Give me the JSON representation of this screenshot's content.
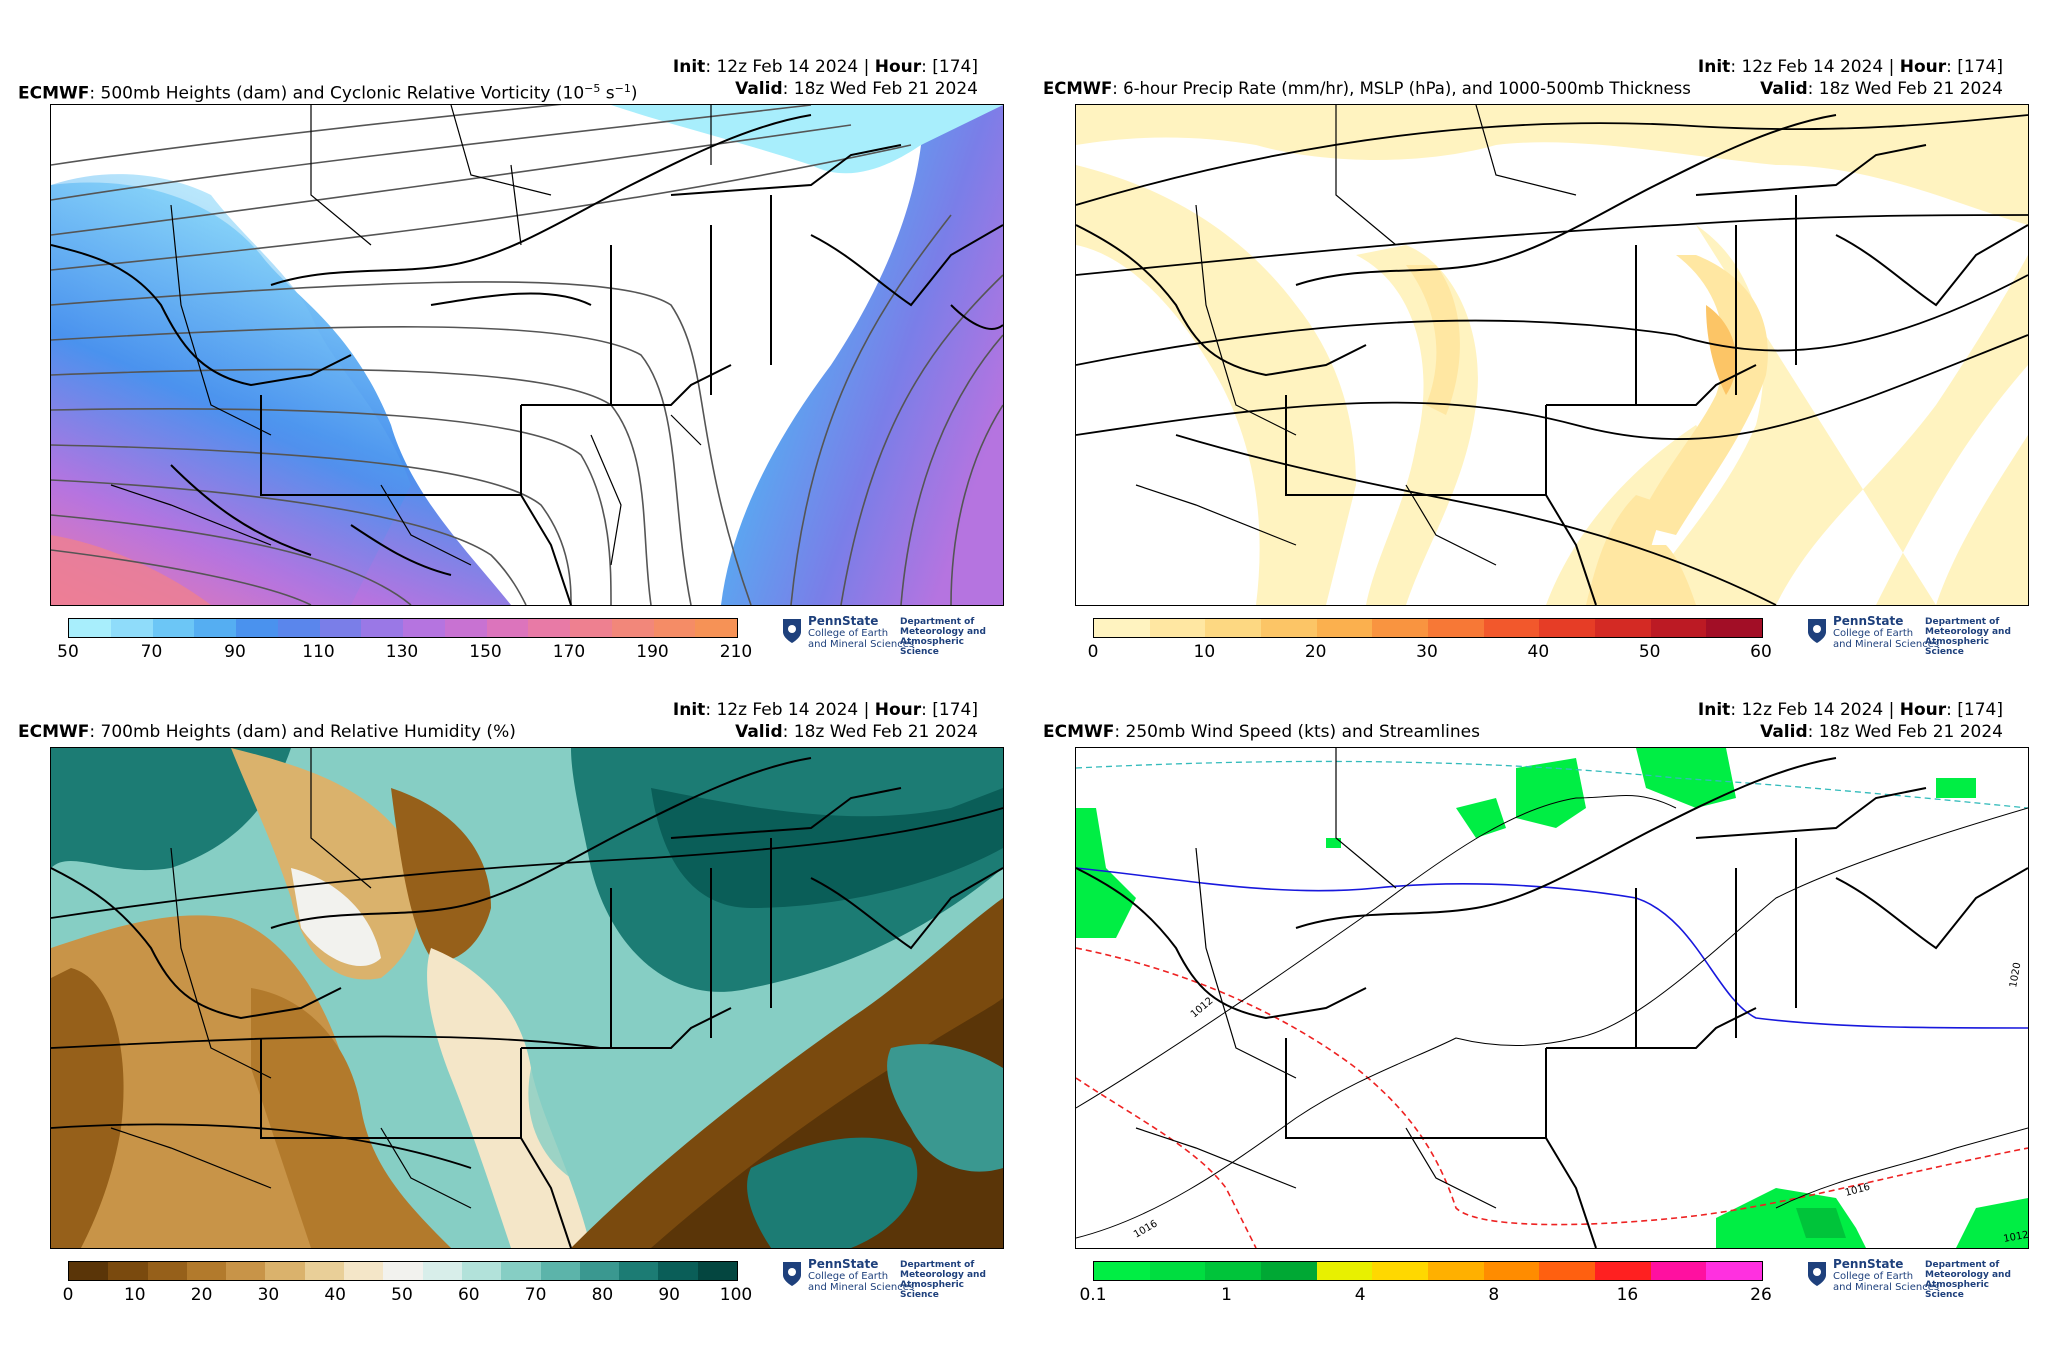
{
  "logo": {
    "name": "PennState",
    "college_line1": "College of Earth",
    "college_line2": "and Mineral Sciences",
    "dept_line1": "Department of",
    "dept_line2": "Meteorology and",
    "dept_line3": "Atmospheric Science"
  },
  "panels": [
    {
      "model": "ECMWF",
      "title": ": 500mb Heights (dam) and Cyclonic Relative Vorticity (10",
      "title_sup": "−5",
      "title_tail": " s",
      "title_sup2": "−1",
      "title_end": ")",
      "init_label": "Init",
      "init_value": ": 12z Feb 14 2024 | ",
      "hour_label": "Hour",
      "hour_value": ": [174]",
      "valid_label": "Valid",
      "valid_value": ": 18z Wed Feb 21 2024",
      "colorbar": {
        "ticks": [
          "50",
          "70",
          "90",
          "110",
          "130",
          "150",
          "170",
          "190",
          "210"
        ],
        "colors": [
          "#a8eefc",
          "#8fdcfa",
          "#6cc6f6",
          "#55aef2",
          "#4a92ee",
          "#5a86ec",
          "#7a7ee8",
          "#9a78e6",
          "#b574e0",
          "#c872d2",
          "#dc74bc",
          "#e87aa6",
          "#ee8090",
          "#f2877a",
          "#f58c66",
          "#f69256"
        ]
      }
    },
    {
      "model": "ECMWF",
      "title": ": 6-hour Precip Rate (mm/hr), MSLP (hPa), and 1000-500mb Thickness",
      "init_label": "Init",
      "init_value": ": 12z Feb 14 2024 | ",
      "hour_label": "Hour",
      "hour_value": ": [174]",
      "valid_label": "Valid",
      "valid_value": ": 18z Wed Feb 21 2024",
      "colorbar": {
        "ticks": [
          "0",
          "10",
          "20",
          "30",
          "40",
          "50",
          "60"
        ],
        "colors": [
          "#fff3c0",
          "#ffe7a2",
          "#fdd882",
          "#fcc566",
          "#fbb04e",
          "#f99440",
          "#f77836",
          "#f2582c",
          "#e63d26",
          "#d42a24",
          "#bc1a24",
          "#a20e26"
        ]
      }
    },
    {
      "model": "ECMWF",
      "title": ": 700mb Heights (dam) and Relative Humidity (%)",
      "init_label": "Init",
      "init_value": ": 12z Feb 14 2024 | ",
      "hour_label": "Hour",
      "hour_value": ": [174]",
      "valid_label": "Valid",
      "valid_value": ": 18z Wed Feb 21 2024",
      "colorbar": {
        "ticks": [
          "0",
          "10",
          "20",
          "30",
          "40",
          "50",
          "60",
          "70",
          "80",
          "90",
          "100"
        ],
        "colors": [
          "#5a3508",
          "#7a4a0e",
          "#96601a",
          "#b27a2c",
          "#c89448",
          "#dab26c",
          "#e9cf98",
          "#f4e6c8",
          "#f2f2ee",
          "#d8eeea",
          "#b2e2da",
          "#86cec4",
          "#5cb4aa",
          "#3a9890",
          "#1c7c74",
          "#0a5e58",
          "#044640"
        ]
      }
    },
    {
      "model": "ECMWF",
      "title": ": 250mb Wind Speed (kts) and Streamlines",
      "init_label": "Init",
      "init_value": ": 12z Feb 14 2024 | ",
      "hour_label": "Hour",
      "hour_value": ": [174]",
      "valid_label": "Valid",
      "valid_value": ": 18z Wed Feb 21 2024",
      "colorbar": {
        "ticks": [
          "0.1",
          "1",
          "4",
          "8",
          "16",
          "26"
        ],
        "colors": [
          "#00ee44",
          "#00dd40",
          "#00c43a",
          "#00a834",
          "#e8f000",
          "#ffd800",
          "#ffb000",
          "#ff8c00",
          "#ff6010",
          "#ff2020",
          "#ff10a0",
          "#ff30e0"
        ]
      },
      "contour_labels": [
        "1012",
        "1016",
        "1016",
        "1020",
        "1012"
      ]
    }
  ]
}
